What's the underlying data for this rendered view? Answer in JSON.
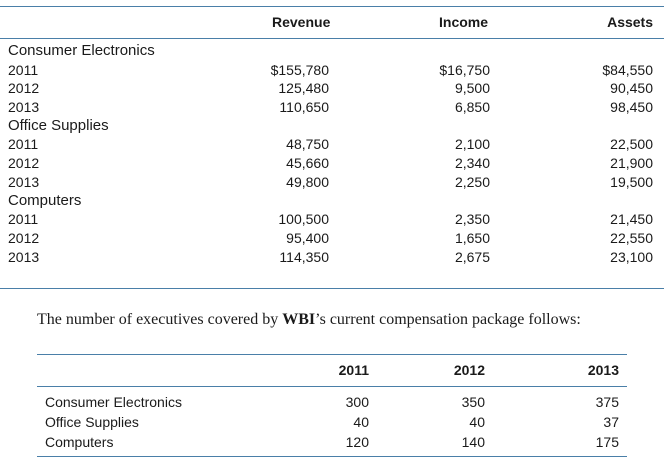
{
  "financials": {
    "headers": {
      "revenue": "Revenue",
      "income": "Income",
      "assets": "Assets"
    },
    "segments": [
      {
        "name": "Consumer Electronics",
        "rows": [
          {
            "year": "2011",
            "revenue": "$155,780",
            "income": "$16,750",
            "assets": "$84,550"
          },
          {
            "year": "2012",
            "revenue": "125,480",
            "income": "9,500",
            "assets": "90,450"
          },
          {
            "year": "2013",
            "revenue": "110,650",
            "income": "6,850",
            "assets": "98,450"
          }
        ]
      },
      {
        "name": "Office Supplies",
        "rows": [
          {
            "year": "2011",
            "revenue": "48,750",
            "income": "2,100",
            "assets": "22,500"
          },
          {
            "year": "2012",
            "revenue": "45,660",
            "income": "2,340",
            "assets": "21,900"
          },
          {
            "year": "2013",
            "revenue": "49,800",
            "income": "2,250",
            "assets": "19,500"
          }
        ]
      },
      {
        "name": "Computers",
        "rows": [
          {
            "year": "2011",
            "revenue": "100,500",
            "income": "2,350",
            "assets": "21,450"
          },
          {
            "year": "2012",
            "revenue": "95,400",
            "income": "1,650",
            "assets": "22,550"
          },
          {
            "year": "2013",
            "revenue": "114,350",
            "income": "2,675",
            "assets": "23,100"
          }
        ]
      }
    ]
  },
  "paragraph": {
    "before": "The number of executives covered by ",
    "bold": "WBI",
    "after": "’s current compensation package follows:"
  },
  "executives": {
    "headers": {
      "y1": "2011",
      "y2": "2012",
      "y3": "2013"
    },
    "rows": [
      {
        "label": "Consumer Electronics",
        "y1": "300",
        "y2": "350",
        "y3": "375"
      },
      {
        "label": "Office Supplies",
        "y1": "40",
        "y2": "40",
        "y3": "37"
      },
      {
        "label": "Computers",
        "y1": "120",
        "y2": "140",
        "y3": "175"
      }
    ]
  },
  "colors": {
    "rule": "#4a7fa8",
    "text": "#1a1a1a"
  }
}
